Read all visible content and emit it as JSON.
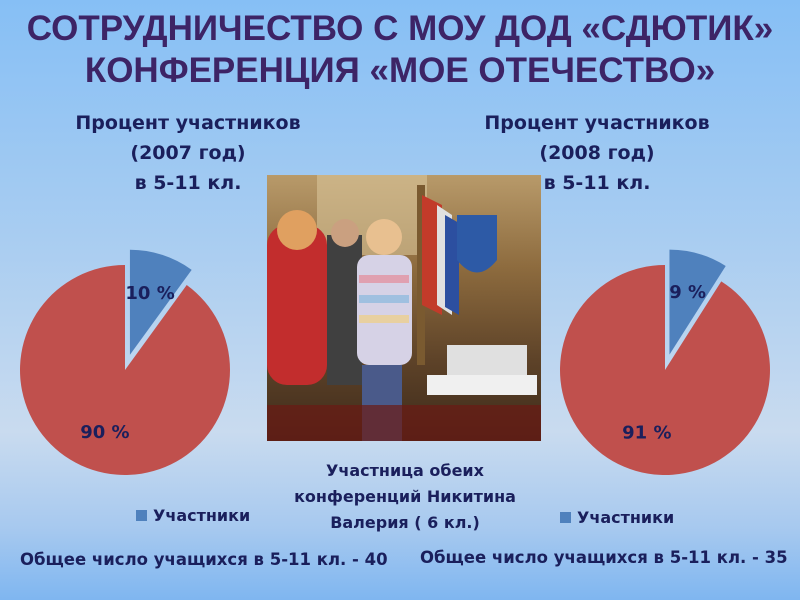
{
  "slide": {
    "title_line1": "СОТРУДНИЧЕСТВО С МОУ ДОД «СДЮТИК»",
    "title_line2": "КОНФЕРЕНЦИЯ «МОЕ ОТЕЧЕСТВО»",
    "photo_caption": "Участница обеих конференций Никитина Валерия ( 6 кл.)",
    "left_total": "Общее число учащихся в 5-11 кл. - 40",
    "right_total": "Общее число учащихся в 5-11 кл. - 35"
  },
  "chart_data": [
    {
      "type": "pie",
      "title_lines": [
        "Процент участников",
        "(2007 год)",
        "в 5-11 кл."
      ],
      "slices": [
        {
          "label": "10 %",
          "value": 10,
          "color": "#4f81bd"
        },
        {
          "label": "90 %",
          "value": 90,
          "color": "#c0504d"
        }
      ],
      "legend": [
        "Участники"
      ],
      "legend_placement": "bottom"
    },
    {
      "type": "pie",
      "title_lines": [
        "Процент участников",
        "(2008 год)",
        "в 5-11 кл."
      ],
      "slices": [
        {
          "label": "9 %",
          "value": 9,
          "color": "#4f81bd"
        },
        {
          "label": "91 %",
          "value": 91,
          "color": "#c0504d"
        }
      ],
      "legend": [
        "Участники"
      ],
      "legend_placement": "bottom"
    }
  ]
}
